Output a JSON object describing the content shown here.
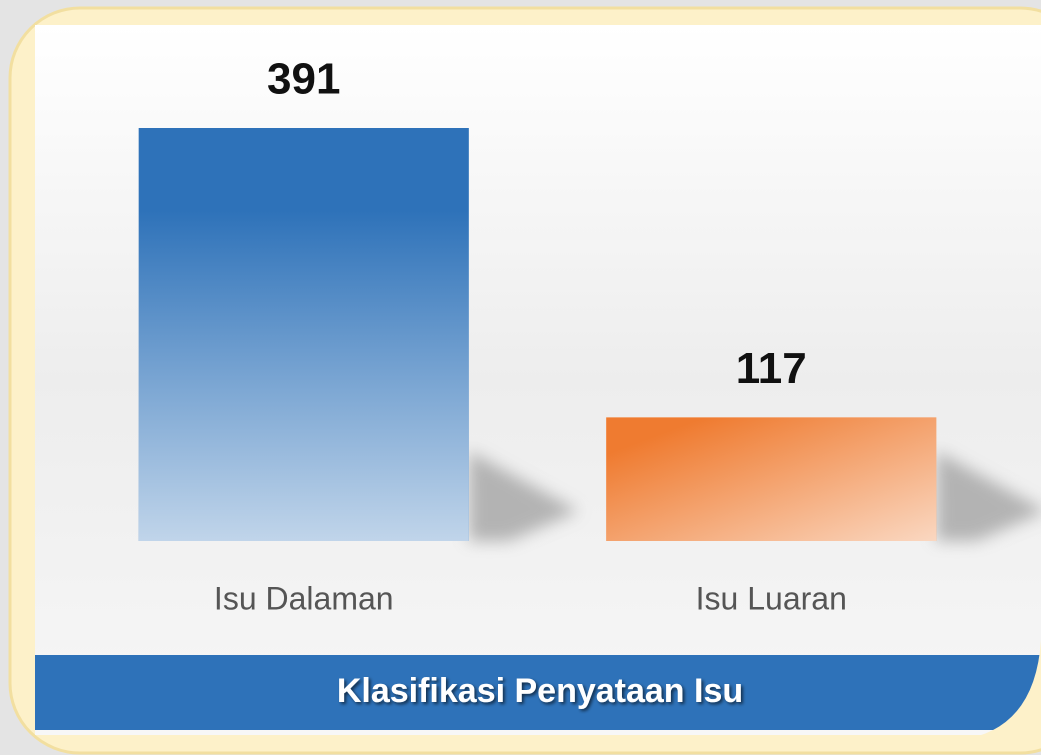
{
  "chart_data": {
    "type": "bar",
    "title": "Klasifikasi Penyataan Isu",
    "categories": [
      "Isu Dalaman",
      "Isu Luaran"
    ],
    "values": [
      391,
      117
    ],
    "colors": [
      "#2e72b9",
      "#ef7b30"
    ]
  }
}
